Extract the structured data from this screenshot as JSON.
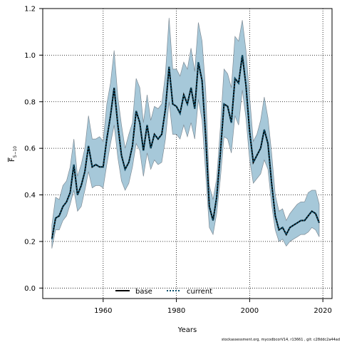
{
  "chart_data": {
    "type": "line",
    "xlabel": "Years",
    "ylabel_main": "F",
    "ylabel_sub": "5−10",
    "xlim": [
      1943.5,
      2022.5
    ],
    "ylim": [
      -0.045,
      1.2
    ],
    "xticks": [
      1960,
      1980,
      2000,
      2020
    ],
    "yticks": [
      0.0,
      0.2,
      0.4,
      0.6,
      0.8,
      1.0,
      1.2
    ],
    "ytick_labels": [
      "0.0",
      "0.2",
      "0.4",
      "0.6",
      "0.8",
      "1.0",
      "1.2"
    ],
    "grid": true,
    "legend_position": "bottom-center",
    "x": [
      1946,
      1947,
      1948,
      1949,
      1950,
      1951,
      1952,
      1953,
      1954,
      1955,
      1956,
      1957,
      1958,
      1959,
      1960,
      1961,
      1962,
      1963,
      1964,
      1965,
      1966,
      1967,
      1968,
      1969,
      1970,
      1971,
      1972,
      1973,
      1974,
      1975,
      1976,
      1977,
      1978,
      1979,
      1980,
      1981,
      1982,
      1983,
      1984,
      1985,
      1986,
      1987,
      1988,
      1989,
      1990,
      1991,
      1992,
      1993,
      1994,
      1995,
      1996,
      1997,
      1998,
      1999,
      2000,
      2001,
      2002,
      2003,
      2004,
      2005,
      2006,
      2007,
      2008,
      2009,
      2010,
      2011,
      2012,
      2013,
      2014,
      2015,
      2016,
      2017,
      2018,
      2019
    ],
    "series": [
      {
        "name": "base",
        "color": "#000000",
        "values": [
          0.21,
          0.3,
          0.31,
          0.35,
          0.37,
          0.41,
          0.53,
          0.4,
          0.44,
          0.5,
          0.61,
          0.52,
          0.53,
          0.52,
          0.52,
          0.64,
          0.74,
          0.86,
          0.7,
          0.57,
          0.51,
          0.54,
          0.61,
          0.76,
          0.71,
          0.59,
          0.7,
          0.6,
          0.66,
          0.64,
          0.66,
          0.77,
          0.95,
          0.79,
          0.78,
          0.75,
          0.83,
          0.79,
          0.86,
          0.77,
          0.97,
          0.89,
          0.65,
          0.35,
          0.29,
          0.39,
          0.58,
          0.79,
          0.78,
          0.71,
          0.9,
          0.88,
          1.0,
          0.87,
          0.67,
          0.54,
          0.57,
          0.6,
          0.68,
          0.62,
          0.45,
          0.31,
          0.25,
          0.26,
          0.23,
          0.26,
          0.27,
          0.28,
          0.29,
          0.29,
          0.31,
          0.33,
          0.32,
          0.28
        ]
      },
      {
        "name": "current",
        "color": "#0b4f6c",
        "values": [
          0.21,
          0.3,
          0.31,
          0.35,
          0.37,
          0.41,
          0.53,
          0.4,
          0.44,
          0.5,
          0.61,
          0.52,
          0.53,
          0.52,
          0.52,
          0.64,
          0.74,
          0.86,
          0.7,
          0.57,
          0.51,
          0.54,
          0.61,
          0.76,
          0.71,
          0.59,
          0.7,
          0.6,
          0.66,
          0.64,
          0.66,
          0.77,
          0.95,
          0.79,
          0.78,
          0.75,
          0.83,
          0.79,
          0.86,
          0.77,
          0.97,
          0.89,
          0.65,
          0.35,
          0.29,
          0.39,
          0.58,
          0.79,
          0.78,
          0.71,
          0.9,
          0.88,
          1.0,
          0.87,
          0.67,
          0.54,
          0.57,
          0.6,
          0.68,
          0.62,
          0.45,
          0.31,
          0.25,
          0.26,
          0.23,
          0.26,
          0.27,
          0.28,
          0.29,
          0.29,
          0.31,
          0.33,
          0.32,
          0.28
        ]
      }
    ],
    "band": {
      "fill": "#a6c8d9",
      "edge": "#7f8c96",
      "upper": [
        0.27,
        0.39,
        0.38,
        0.44,
        0.46,
        0.52,
        0.64,
        0.48,
        0.53,
        0.6,
        0.74,
        0.64,
        0.64,
        0.65,
        0.63,
        0.79,
        0.88,
        1.02,
        0.82,
        0.7,
        0.6,
        0.66,
        0.71,
        0.9,
        0.86,
        0.71,
        0.83,
        0.72,
        0.78,
        0.77,
        0.79,
        0.92,
        1.16,
        0.94,
        0.94,
        0.91,
        0.97,
        0.94,
        1.03,
        0.93,
        1.14,
        1.06,
        0.85,
        0.44,
        0.38,
        0.47,
        0.69,
        0.94,
        0.92,
        0.86,
        1.08,
        1.06,
        1.15,
        1.02,
        0.82,
        0.63,
        0.66,
        0.72,
        0.82,
        0.73,
        0.58,
        0.4,
        0.33,
        0.34,
        0.29,
        0.32,
        0.34,
        0.36,
        0.37,
        0.37,
        0.41,
        0.42,
        0.42,
        0.36
      ],
      "lower": [
        0.17,
        0.25,
        0.25,
        0.29,
        0.31,
        0.36,
        0.42,
        0.33,
        0.35,
        0.42,
        0.5,
        0.43,
        0.44,
        0.44,
        0.43,
        0.53,
        0.62,
        0.7,
        0.56,
        0.46,
        0.42,
        0.45,
        0.52,
        0.62,
        0.59,
        0.48,
        0.58,
        0.51,
        0.55,
        0.53,
        0.54,
        0.64,
        0.8,
        0.66,
        0.66,
        0.64,
        0.7,
        0.65,
        0.71,
        0.64,
        0.81,
        0.72,
        0.49,
        0.26,
        0.23,
        0.32,
        0.47,
        0.65,
        0.64,
        0.58,
        0.74,
        0.7,
        0.85,
        0.73,
        0.55,
        0.45,
        0.47,
        0.49,
        0.55,
        0.51,
        0.36,
        0.25,
        0.2,
        0.21,
        0.18,
        0.2,
        0.21,
        0.22,
        0.23,
        0.23,
        0.24,
        0.26,
        0.25,
        0.22
      ]
    }
  },
  "footer": "stockassessment.org, mycodbcorV14, r13661 ,  git: c28ddc2a44ad"
}
